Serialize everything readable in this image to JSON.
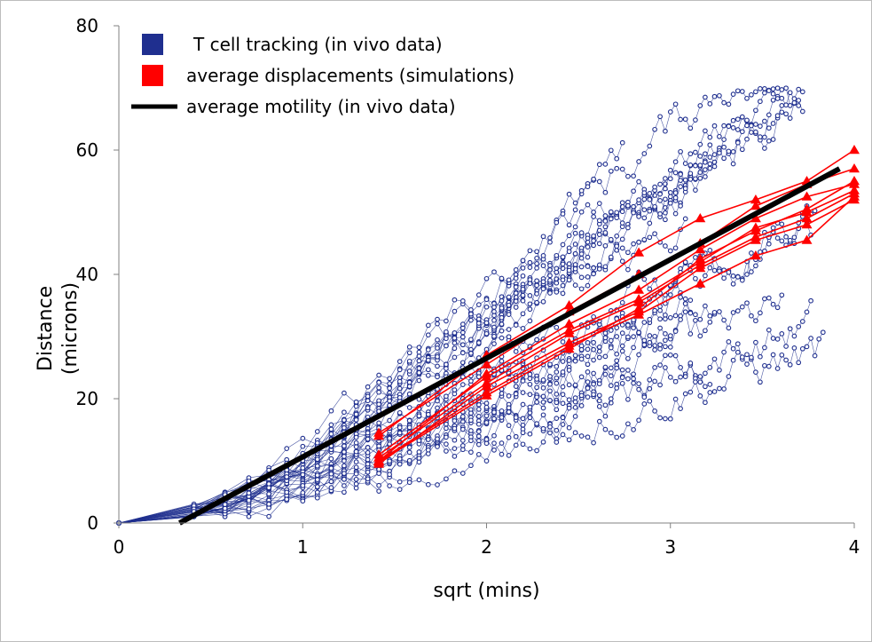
{
  "chart_data": {
    "type": "scatter",
    "xlabel": "sqrt (mins)",
    "ylabel": [
      "Distance",
      "(microns)"
    ],
    "xlim": [
      0,
      4
    ],
    "ylim": [
      0,
      80
    ],
    "xticks": [
      "0",
      "1",
      "2",
      "3",
      "4"
    ],
    "yticks": [
      "0",
      "20",
      "40",
      "60",
      "80"
    ],
    "grid": false,
    "legend": {
      "position": "top-left",
      "entries": [
        {
          "label": "T cell tracking (in vivo data)",
          "color": "#1f2f8f",
          "marker": "square"
        },
        {
          "label": "average displacements (simulations)",
          "color": "#ff0000",
          "marker": "square"
        },
        {
          "label": "average motility (in vivo data)",
          "color": "#000000",
          "marker": "line"
        }
      ]
    },
    "x_samples": [
      0,
      0.408,
      0.577,
      0.707,
      0.816,
      0.913,
      1.0,
      1.08,
      1.155,
      1.225,
      1.291,
      1.354,
      1.414,
      1.472,
      1.528,
      1.581,
      1.633,
      1.683,
      1.732,
      1.78,
      1.826,
      1.871,
      1.915,
      1.958,
      2.0,
      2.041,
      2.082,
      2.121,
      2.16,
      2.198,
      2.236,
      2.273,
      2.309,
      2.345,
      2.38,
      2.415,
      2.449,
      2.483,
      2.517,
      2.55,
      2.582,
      2.614,
      2.646,
      2.677,
      2.708,
      2.739,
      2.769,
      2.799,
      2.828,
      2.858,
      2.887,
      2.915,
      2.944,
      2.972,
      3.0,
      3.028,
      3.055,
      3.082,
      3.109,
      3.136,
      3.162,
      3.189,
      3.215,
      3.24,
      3.266,
      3.291,
      3.317,
      3.342,
      3.367,
      3.391,
      3.416,
      3.44,
      3.464,
      3.488,
      3.512,
      3.536,
      3.559,
      3.583,
      3.606,
      3.629,
      3.651,
      3.674,
      3.697,
      3.719,
      3.742,
      3.764,
      3.786,
      3.808,
      3.83,
      3.851,
      3.873,
      3.894,
      3.916
    ],
    "tracks_seeds": {
      "count": 40,
      "seed": 12345
    },
    "avg_motility": {
      "x": [
        0.33,
        3.92
      ],
      "y": [
        0,
        57
      ]
    },
    "simulations": {
      "x": [
        1.414,
        2.0,
        2.449,
        2.828,
        3.162,
        3.464,
        3.742,
        4.0
      ],
      "series": [
        [
          14.0,
          27.0,
          35.0,
          43.5,
          49.0,
          52.0,
          55.0,
          60.0
        ],
        [
          14.5,
          25.5,
          34.0,
          40.0,
          45.0,
          51.0,
          54.5,
          57.0
        ],
        [
          10.0,
          24.0,
          32.0,
          37.5,
          44.0,
          49.0,
          52.5,
          54.5
        ],
        [
          11.0,
          23.5,
          31.0,
          36.0,
          42.0,
          47.5,
          50.0,
          53.5
        ],
        [
          10.5,
          22.5,
          30.5,
          35.5,
          41.5,
          46.0,
          49.0,
          53.0
        ],
        [
          9.5,
          22.0,
          29.0,
          34.0,
          41.0,
          45.5,
          48.0,
          52.0
        ],
        [
          10.0,
          21.0,
          28.5,
          33.5,
          38.5,
          43.0,
          45.5,
          52.5
        ],
        [
          9.8,
          20.5,
          28.0,
          34.5,
          42.5,
          47.0,
          50.5,
          55.0
        ]
      ]
    }
  }
}
